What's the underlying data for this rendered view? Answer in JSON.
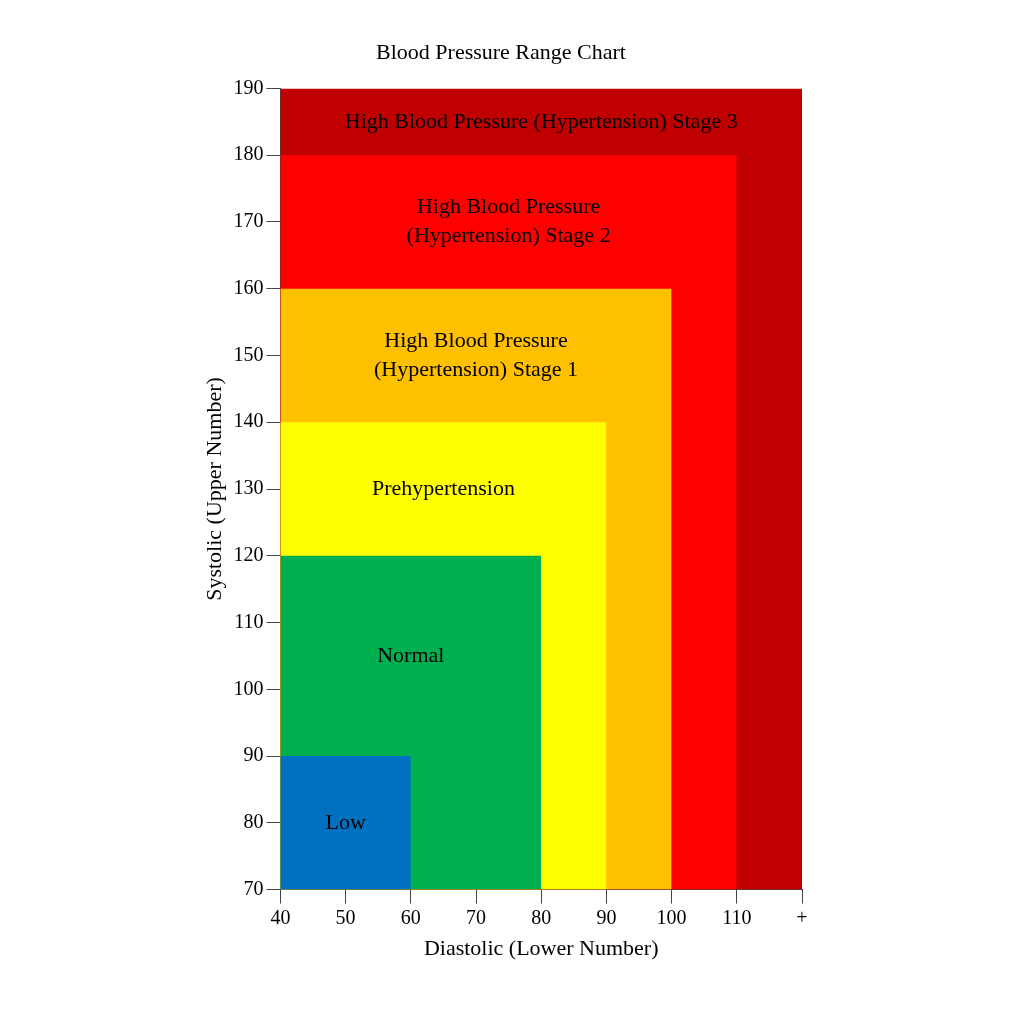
{
  "chart_data": {
    "type": "area",
    "title": "Blood Pressure Range Chart",
    "xlabel": "Diastolic (Lower Number)",
    "ylabel": "Systolic (Upper Number)",
    "xlim": [
      40,
      120
    ],
    "xticks": [
      40,
      50,
      60,
      70,
      80,
      90,
      100,
      110,
      {
        "value": 120,
        "label": "+"
      }
    ],
    "ylim": [
      70,
      190
    ],
    "yticks": [
      70,
      80,
      90,
      100,
      110,
      120,
      130,
      140,
      150,
      160,
      170,
      180,
      190
    ],
    "grid": false,
    "legend": false,
    "series": [
      {
        "name": "High Blood Pressure (Hypertension) Stage 3",
        "color": "#c00000",
        "x": [
          40,
          120
        ],
        "values": [
          190,
          190
        ]
      },
      {
        "name": "High Blood Pressure (Hypertension) Stage 2",
        "color": "#ff0000",
        "x": [
          40,
          110
        ],
        "values": [
          180,
          180
        ]
      },
      {
        "name": "High Blood Pressure (Hypertension) Stage 1",
        "color": "#ffc000",
        "x": [
          40,
          100
        ],
        "values": [
          160,
          160
        ]
      },
      {
        "name": "Prehypertension",
        "color": "#ffff00",
        "x": [
          40,
          90
        ],
        "values": [
          140,
          140
        ]
      },
      {
        "name": "Normal",
        "color": "#00b050",
        "x": [
          40,
          80
        ],
        "values": [
          120,
          120
        ]
      },
      {
        "name": "Low",
        "color": "#0070c0",
        "x": [
          40,
          60
        ],
        "values": [
          90,
          90
        ]
      }
    ]
  }
}
